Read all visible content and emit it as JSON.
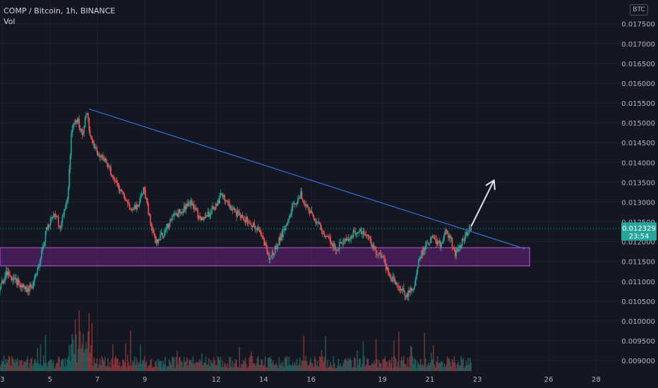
{
  "header": {
    "title": "COMP / Bitcoin, 1h, BINANCE",
    "volume_label": "Vol"
  },
  "currency_badge": "BTC",
  "colors": {
    "background": "#131722",
    "grid": "#1f2330",
    "up": "#26a69a",
    "down": "#ef5350",
    "trendline": "#3a6fd8",
    "support_zone": "#9c27b0",
    "price_label": "#26a69a",
    "arrow": "#e0e3eb",
    "axis_text": "#b2b5be"
  },
  "chart_data": {
    "type": "candlestick",
    "title": "COMP / Bitcoin, 1h, BINANCE",
    "exchange": "BINANCE",
    "interval": "1h",
    "ylim": [
      0.0087,
      0.0181
    ],
    "y_ticks": [
      "0.009000",
      "0.009500",
      "0.010000",
      "0.010500",
      "0.011000",
      "0.011500",
      "0.012000",
      "0.012500",
      "0.013000",
      "0.013500",
      "0.014000",
      "0.014500",
      "0.015000",
      "0.015500",
      "0.016000",
      "0.016500",
      "0.017000",
      "0.017500"
    ],
    "y_tick_values": [
      0.009,
      0.0095,
      0.01,
      0.0105,
      0.011,
      0.0115,
      0.012,
      0.0125,
      0.013,
      0.0135,
      0.014,
      0.0145,
      0.015,
      0.0155,
      0.016,
      0.0165,
      0.017,
      0.0175
    ],
    "x_tick_labels": [
      "3",
      "5",
      "7",
      "9",
      "12",
      "14",
      "16",
      "19",
      "21",
      "23",
      "26",
      "28"
    ],
    "x_tick_days": [
      3,
      5,
      7,
      9,
      12,
      14,
      16,
      19,
      21,
      23,
      26,
      28
    ],
    "x_range_days": [
      2.9,
      29.0
    ],
    "last_price": {
      "value": 0.012329,
      "label": "0.012329",
      "countdown": "23:54"
    },
    "price_path": [
      [
        2.9,
        0.01075
      ],
      [
        3.2,
        0.0112
      ],
      [
        3.6,
        0.011
      ],
      [
        4.1,
        0.0108
      ],
      [
        4.3,
        0.0109
      ],
      [
        4.6,
        0.0115
      ],
      [
        4.9,
        0.0123
      ],
      [
        5.2,
        0.0127
      ],
      [
        5.5,
        0.0124
      ],
      [
        5.8,
        0.0132
      ],
      [
        5.95,
        0.0148
      ],
      [
        6.2,
        0.0151
      ],
      [
        6.4,
        0.0147
      ],
      [
        6.6,
        0.0153
      ],
      [
        6.7,
        0.0148
      ],
      [
        7.0,
        0.01425
      ],
      [
        7.4,
        0.014
      ],
      [
        7.8,
        0.01355
      ],
      [
        8.2,
        0.0131
      ],
      [
        8.5,
        0.0128
      ],
      [
        8.8,
        0.013
      ],
      [
        9.0,
        0.0134
      ],
      [
        9.2,
        0.0127
      ],
      [
        9.5,
        0.01195
      ],
      [
        9.8,
        0.0122
      ],
      [
        10.2,
        0.0126
      ],
      [
        10.6,
        0.0128
      ],
      [
        11.0,
        0.013
      ],
      [
        11.4,
        0.0125
      ],
      [
        11.9,
        0.0128
      ],
      [
        12.3,
        0.0132
      ],
      [
        12.7,
        0.0128
      ],
      [
        13.2,
        0.0126
      ],
      [
        13.7,
        0.0124
      ],
      [
        14.0,
        0.0121
      ],
      [
        14.3,
        0.01155
      ],
      [
        14.6,
        0.0119
      ],
      [
        14.9,
        0.0123
      ],
      [
        15.2,
        0.0128
      ],
      [
        15.6,
        0.0132
      ],
      [
        15.9,
        0.0128
      ],
      [
        16.3,
        0.0125
      ],
      [
        16.7,
        0.0121
      ],
      [
        17.1,
        0.01185
      ],
      [
        17.6,
        0.0121
      ],
      [
        18.0,
        0.0123
      ],
      [
        18.4,
        0.0121
      ],
      [
        18.8,
        0.01175
      ],
      [
        19.1,
        0.0115
      ],
      [
        19.4,
        0.0111
      ],
      [
        19.8,
        0.0108
      ],
      [
        20.1,
        0.01065
      ],
      [
        20.4,
        0.0109
      ],
      [
        20.6,
        0.0116
      ],
      [
        20.9,
        0.0119
      ],
      [
        21.2,
        0.0121
      ],
      [
        21.5,
        0.0119
      ],
      [
        21.7,
        0.0123
      ],
      [
        21.9,
        0.0121
      ],
      [
        22.1,
        0.0117
      ],
      [
        22.4,
        0.012
      ],
      [
        22.6,
        0.0122
      ],
      [
        22.75,
        0.01233
      ]
    ],
    "highs": [
      [
        6.65,
        0.01535
      ],
      [
        15.6,
        0.01355
      ],
      [
        21.65,
        0.01245
      ]
    ],
    "lows": [
      [
        20.15,
        0.01052
      ],
      [
        14.3,
        0.01138
      ],
      [
        9.5,
        0.01185
      ]
    ],
    "trendline": {
      "start": [
        6.65,
        0.01535
      ],
      "end": [
        25.0,
        0.01182
      ]
    },
    "support_zone": {
      "x0": 2.9,
      "x1": 25.2,
      "y_low": 0.01139,
      "y_high": 0.01185
    },
    "projection_arrow": {
      "start": [
        22.75,
        0.0124
      ],
      "end": [
        23.7,
        0.01355
      ]
    }
  }
}
